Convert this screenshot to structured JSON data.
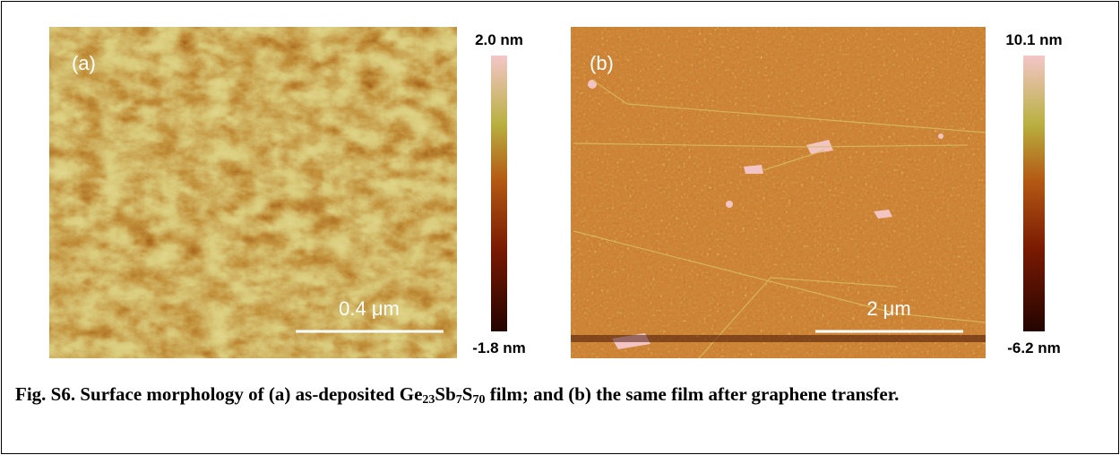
{
  "panels": [
    {
      "label": "(a)",
      "scale_bar": "0.4 μm",
      "colorbar_max": "2.0 nm",
      "colorbar_min": "-1.8 nm"
    },
    {
      "label": "(b)",
      "scale_bar": "2 μm",
      "colorbar_max": "10.1 nm",
      "colorbar_min": "-6.2 nm"
    }
  ],
  "caption": {
    "parts": [
      "Fig. S6. Surface morphology of (a) as-deposited Ge",
      "23",
      "Sb",
      "7",
      "S",
      "70",
      " film; and (b) the same film after graphene transfer."
    ]
  }
}
